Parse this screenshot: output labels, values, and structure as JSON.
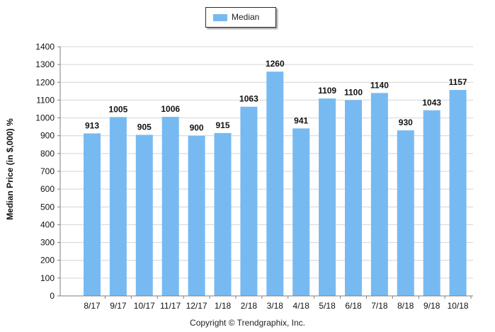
{
  "legend": {
    "label": "Median"
  },
  "footer": {
    "copyright": "Copyright © Trendgraphix, Inc."
  },
  "chart_data": {
    "type": "bar",
    "categories": [
      "8/17",
      "9/17",
      "10/17",
      "11/17",
      "12/17",
      "1/18",
      "2/18",
      "3/18",
      "4/18",
      "5/18",
      "6/18",
      "7/18",
      "8/18",
      "9/18",
      "10/18"
    ],
    "series": [
      {
        "name": "Median",
        "values": [
          913,
          1005,
          905,
          1006,
          900,
          915,
          1063,
          1260,
          941,
          1109,
          1100,
          1140,
          930,
          1043,
          1157
        ],
        "color": "#77baf2"
      }
    ],
    "title": "",
    "xlabel": "",
    "ylabel": "Median Price (in $,000) %",
    "ylim": [
      0,
      1400
    ],
    "yticks": [
      0,
      100,
      200,
      300,
      400,
      500,
      600,
      700,
      800,
      900,
      1000,
      1100,
      1200,
      1300,
      1400
    ],
    "grid": true,
    "legend_position": "top-center",
    "data_labels": true,
    "colors": {
      "bar": "#77baf2",
      "grid": "#d4d4d4",
      "axis": "#7f7f7f",
      "text": "#111111"
    }
  }
}
